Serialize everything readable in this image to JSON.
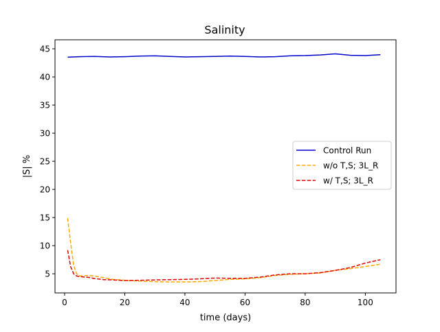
{
  "chart_data": {
    "type": "line",
    "title": "Salinity",
    "xlabel": "time (days)",
    "ylabel": "|S| %",
    "xlim": [
      -3.2,
      110.2
    ],
    "ylim": [
      1.6,
      46.6
    ],
    "xticks": [
      0,
      20,
      40,
      60,
      80,
      100
    ],
    "yticks": [
      5,
      10,
      15,
      20,
      25,
      30,
      35,
      40,
      45
    ],
    "grid": false,
    "legend_position": "center-right",
    "series": [
      {
        "name": "Control Run",
        "color": "#0000cc",
        "dash": "solid",
        "x": [
          1,
          5,
          10,
          15,
          20,
          25,
          30,
          35,
          40,
          45,
          50,
          55,
          60,
          65,
          70,
          75,
          80,
          85,
          90,
          95,
          100,
          105
        ],
        "y": [
          43.5,
          43.6,
          43.65,
          43.55,
          43.6,
          43.7,
          43.75,
          43.65,
          43.55,
          43.6,
          43.65,
          43.7,
          43.65,
          43.55,
          43.6,
          43.75,
          43.8,
          43.9,
          44.1,
          43.85,
          43.8,
          43.95
        ]
      },
      {
        "name": "w/o T,S; 3L_R",
        "color": "#ffa500",
        "dash": "dashed",
        "x": [
          1,
          2,
          3,
          4,
          5,
          6,
          8,
          10,
          13,
          16,
          20,
          25,
          30,
          35,
          40,
          45,
          50,
          55,
          60,
          65,
          70,
          75,
          80,
          85,
          90,
          95,
          100,
          105
        ],
        "y": [
          14.9,
          10.5,
          6.5,
          5.0,
          4.6,
          4.65,
          4.7,
          4.6,
          4.3,
          4.0,
          3.85,
          3.7,
          3.6,
          3.55,
          3.55,
          3.6,
          3.8,
          4.0,
          4.1,
          4.3,
          4.7,
          4.9,
          5.0,
          5.15,
          5.6,
          5.9,
          6.3,
          6.7
        ]
      },
      {
        "name": "w/ T,S; 3L_R",
        "color": "#dd0000",
        "dash": "dashed",
        "x": [
          1,
          2,
          3,
          4,
          5,
          6,
          8,
          10,
          13,
          16,
          20,
          25,
          30,
          35,
          40,
          45,
          50,
          55,
          60,
          65,
          70,
          75,
          80,
          85,
          90,
          95,
          100,
          105
        ],
        "y": [
          9.2,
          6.3,
          5.0,
          4.6,
          4.5,
          4.45,
          4.35,
          4.15,
          3.95,
          3.9,
          3.8,
          3.85,
          3.9,
          3.95,
          4.0,
          4.1,
          4.25,
          4.2,
          4.2,
          4.4,
          4.8,
          5.0,
          5.0,
          5.2,
          5.6,
          6.1,
          6.9,
          7.5
        ]
      }
    ]
  }
}
